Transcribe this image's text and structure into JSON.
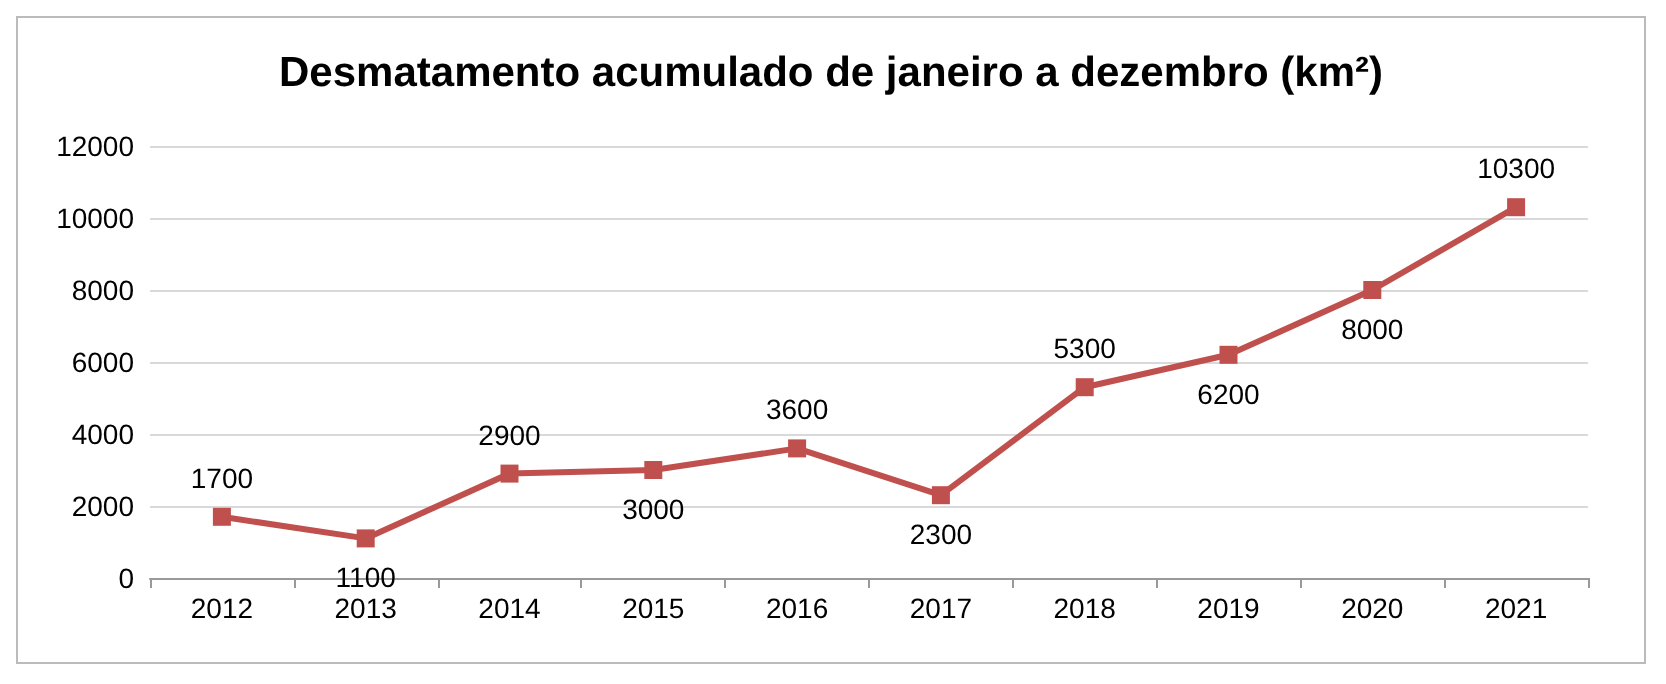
{
  "chart_data": {
    "type": "line",
    "title": "Desmatamento acumulado de janeiro a dezembro (km²)",
    "categories": [
      "2012",
      "2013",
      "2014",
      "2015",
      "2016",
      "2017",
      "2018",
      "2019",
      "2020",
      "2021"
    ],
    "series": [
      {
        "color": "#c0504d",
        "values": [
          1700,
          1100,
          2900,
          3000,
          3600,
          2300,
          5300,
          6200,
          8000,
          10300
        ]
      }
    ],
    "ylim": [
      0,
      12000
    ],
    "yticks": [
      0,
      2000,
      4000,
      6000,
      8000,
      10000,
      12000
    ],
    "grid": "y",
    "data_labels": true,
    "marker": "square",
    "line_style": "solid"
  }
}
